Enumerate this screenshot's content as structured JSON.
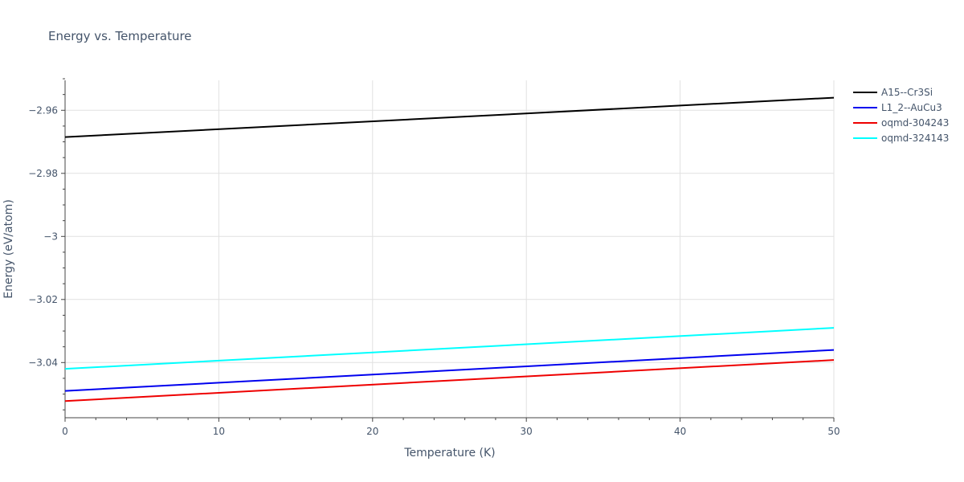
{
  "chart_data": {
    "type": "line",
    "title": "Energy vs. Temperature",
    "xlabel": "Temperature (K)",
    "ylabel": "Energy (eV/atom)",
    "xlim": [
      0,
      50
    ],
    "ylim": [
      -3.0575,
      -2.9505
    ],
    "x_ticks": [
      0,
      10,
      20,
      30,
      40,
      50
    ],
    "x_tick_labels": [
      "0",
      "10",
      "20",
      "30",
      "40",
      "50"
    ],
    "y_ticks": [
      -2.96,
      -2.98,
      -3.0,
      -3.02,
      -3.04
    ],
    "y_tick_labels": [
      "−2.96",
      "−2.98",
      "−3",
      "−3.02",
      "−3.04"
    ],
    "grid": true,
    "legend_position": "top-right",
    "series": [
      {
        "name": "A15--Cr3Si",
        "color": "#000000",
        "x": [
          0,
          50
        ],
        "y": [
          -2.9685,
          -2.956
        ]
      },
      {
        "name": "L1_2--AuCu3",
        "color": "#0000ee",
        "x": [
          0,
          50
        ],
        "y": [
          -3.049,
          -3.036
        ]
      },
      {
        "name": "oqmd-304243",
        "color": "#ee0000",
        "x": [
          0,
          50
        ],
        "y": [
          -3.0522,
          -3.0392
        ]
      },
      {
        "name": "oqmd-324143",
        "color": "#00ffff",
        "x": [
          0,
          50
        ],
        "y": [
          -3.042,
          -3.029
        ]
      }
    ]
  }
}
